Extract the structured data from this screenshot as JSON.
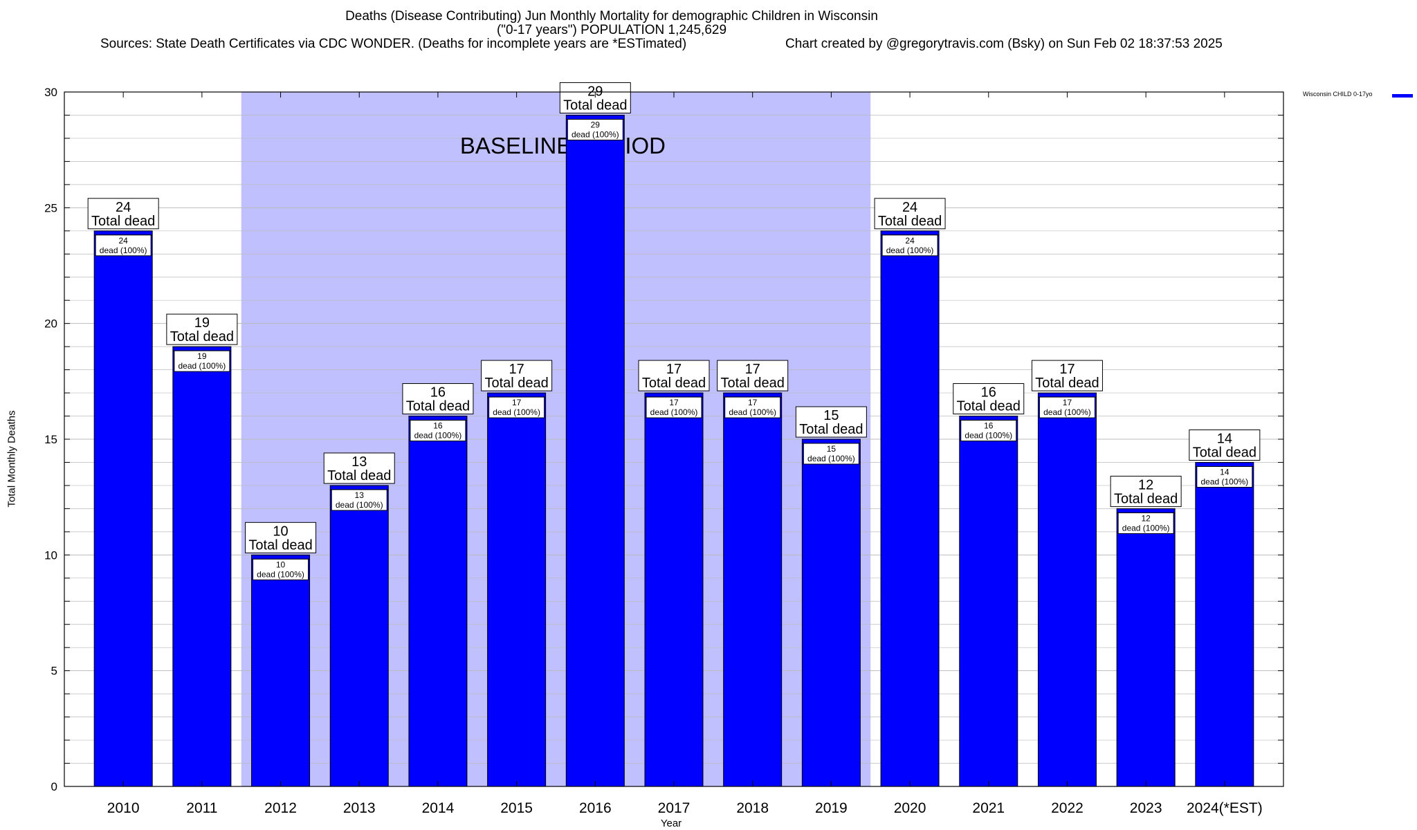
{
  "header": {
    "line1": "Deaths (Disease Contributing) Jun Monthly Mortality for demographic Children in Wisconsin",
    "line2": "(\"0-17 years\") POPULATION 1,245,629",
    "line3_source": "Sources: State Death Certificates via CDC WONDER. (Deaths for incomplete years are *ESTimated)",
    "line3_credit": "Chart created by @gregorytravis.com (Bsky) on Sun Feb 02 18:37:53 2025"
  },
  "colors": {
    "bar": "#0000ff",
    "baseline_shade": "#c0c0ff",
    "grid": "#bbbbbb"
  },
  "chart_data": {
    "type": "bar",
    "title": "Deaths (Disease Contributing) Jun Monthly Mortality for demographic Children in Wisconsin",
    "xlabel": "Year",
    "ylabel": "Total Monthly Deaths",
    "ylim": [
      0,
      30
    ],
    "yticks": [
      0,
      5,
      10,
      15,
      20,
      25,
      30
    ],
    "grid": true,
    "legend_position": "top-right",
    "categories": [
      "2010",
      "2011",
      "2012",
      "2013",
      "2014",
      "2015",
      "2016",
      "2017",
      "2018",
      "2019",
      "2020",
      "2021",
      "2022",
      "2023",
      "2024(*EST)"
    ],
    "series": [
      {
        "name": "Wisconsin CHILD 0-17yo",
        "values": [
          24,
          19,
          10,
          13,
          16,
          17,
          29,
          17,
          17,
          15,
          24,
          16,
          17,
          12,
          14
        ]
      }
    ],
    "top_label_suffix": "Total dead",
    "inner_label_suffix": "dead (100%)",
    "baseline_period": {
      "label": "BASELINE PERIOD",
      "from": "2012",
      "to": "2019"
    }
  }
}
